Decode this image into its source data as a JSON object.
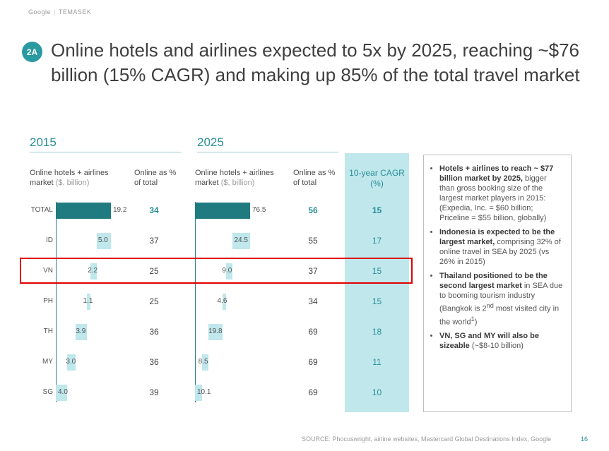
{
  "header": {
    "brand_left": "Google",
    "brand_right": "TEMASEK",
    "badge": "2A",
    "title": "Online hotels and airlines expected to 5x by 2025, reaching ~$76 billion (15% CAGR) and making up 85% of the total travel market"
  },
  "columns": {
    "year_2015": "2015",
    "year_2025": "2025",
    "market_label": "Online hotels + airlines market",
    "market_unit": "($, billion)",
    "share_label": "Online as % of total",
    "cagr_label": "10-year CAGR (%)"
  },
  "chart_data": {
    "type": "table",
    "rows": [
      {
        "country": "TOTAL",
        "market_2015": "19.2",
        "share_2015": "34",
        "market_2025": "76.5",
        "share_2025": "56",
        "cagr": "15"
      },
      {
        "country": "ID",
        "market_2015": "5.0",
        "share_2015": "37",
        "market_2025": "24.5",
        "share_2025": "55",
        "cagr": "17"
      },
      {
        "country": "VN",
        "market_2015": "2.2",
        "share_2015": "25",
        "market_2025": "9.0",
        "share_2025": "37",
        "cagr": "15"
      },
      {
        "country": "PH",
        "market_2015": "1.1",
        "share_2015": "25",
        "market_2025": "4.6",
        "share_2025": "34",
        "cagr": "15"
      },
      {
        "country": "TH",
        "market_2015": "3.9",
        "share_2015": "36",
        "market_2025": "19.8",
        "share_2025": "69",
        "cagr": "18"
      },
      {
        "country": "MY",
        "market_2015": "3.0",
        "share_2015": "36",
        "market_2025": "8.5",
        "share_2025": "69",
        "cagr": "11"
      },
      {
        "country": "SG",
        "market_2015": "4.0",
        "share_2015": "39",
        "market_2025": "10.1",
        "share_2025": "69",
        "cagr": "10"
      }
    ],
    "highlighted_row": "VN",
    "colors": {
      "total_bar": "#1f7b80",
      "country_bar": "#bfe7ec",
      "accent": "#2a8f97",
      "highlight": "#e00000"
    }
  },
  "callout": {
    "b1_bold": "Hotels + airlines to reach ~ $77 billion market by 2025,",
    "b1_rest": " bigger than gross booking size of the largest market players in 2015: (Expedia, Inc. = $60 billion; Priceline = $55 billion, globally)",
    "b2_bold": "Indonesia is expected to be the largest market,",
    "b2_rest": " comprising 32% of online travel in SEA by 2025 (vs 26% in 2015)",
    "b3_bold": "Thailand positioned to be the second largest market",
    "b3_rest1": " in SEA due to booming tourism industry (Bangkok is 2",
    "b3_sup": "nd",
    "b3_rest2": " most visited city in the world",
    "b3_sup2": "1",
    "b3_rest3": ")",
    "b4_bold": "VN, SG and MY will also be sizeable",
    "b4_rest": " (~$8-10 billion)"
  },
  "footer": {
    "source": "SOURCE: Phocuswright, airline websites, Mastercard Global Destinations Index, Google",
    "page": "16"
  }
}
